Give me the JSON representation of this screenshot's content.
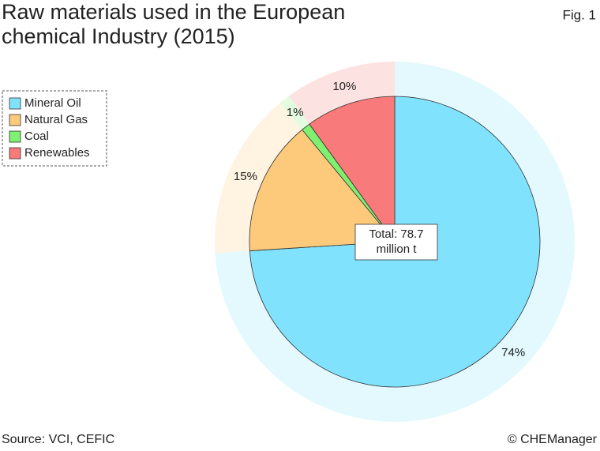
{
  "chart_data": {
    "type": "pie",
    "title": "Raw materials used in the European chemical Industry (2015)",
    "figure_label": "Fig. 1",
    "categories": [
      "Mineral Oil",
      "Natural Gas",
      "Coal",
      "Renewables"
    ],
    "values": [
      74,
      15,
      1,
      10
    ],
    "value_labels": [
      "74%",
      "15%",
      "1%",
      "10%"
    ],
    "colors": [
      "#80e2fc",
      "#fdca7c",
      "#80f070",
      "#f87a7a"
    ],
    "center_label": [
      "Total: 78.7",
      "million t"
    ],
    "legend": "upper left",
    "source": "Source: VCI, CEFIC",
    "credit": "© CHEManager"
  }
}
